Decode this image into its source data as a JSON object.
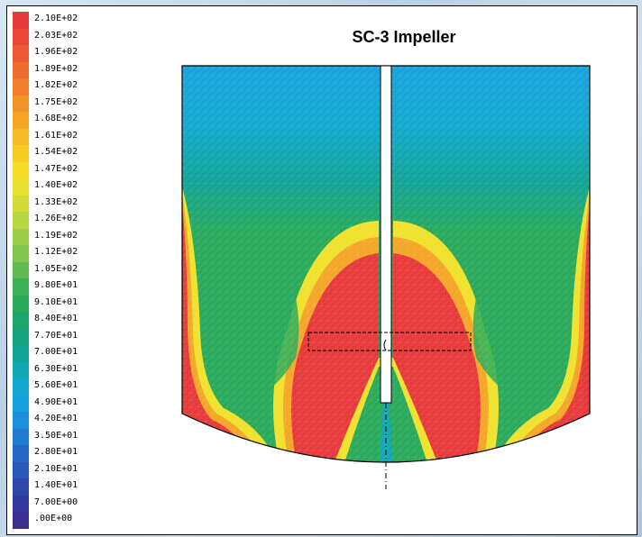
{
  "title": "SC-3 Impeller",
  "legend": {
    "labels": [
      "2.10E+02",
      "2.03E+02",
      "1.96E+02",
      "1.89E+02",
      "1.82E+02",
      "1.75E+02",
      "1.68E+02",
      "1.61E+02",
      "1.54E+02",
      "1.47E+02",
      "1.40E+02",
      "1.33E+02",
      "1.26E+02",
      "1.19E+02",
      "1.12E+02",
      "1.05E+02",
      "9.80E+01",
      "9.10E+01",
      "8.40E+01",
      "7.70E+01",
      "7.00E+01",
      "6.30E+01",
      "5.60E+01",
      "4.90E+01",
      "4.20E+01",
      "3.50E+01",
      "2.80E+01",
      "2.10E+01",
      "1.40E+01",
      "7.00E+00",
      ".00E+00"
    ],
    "colors": [
      "#e8393a",
      "#ea4737",
      "#ec5a33",
      "#ee6d30",
      "#f0802d",
      "#f2932a",
      "#f5a627",
      "#f7b924",
      "#f9cc22",
      "#f7dc26",
      "#e9df2e",
      "#d2dc38",
      "#b8d642",
      "#9dce4a",
      "#7fc54f",
      "#5fbb52",
      "#3db054",
      "#29aa5a",
      "#1ba568",
      "#13a47e",
      "#10a598",
      "#10a8b4",
      "#12a8cf",
      "#16a2e0",
      "#1a8fdc",
      "#1f7bd2",
      "#2467c5",
      "#2957b7",
      "#2e48a8",
      "#33399a",
      "#3a2f8f"
    ]
  },
  "colors": {
    "red": "#e8393a",
    "orange": "#f5a627",
    "yellow": "#f0e22a",
    "green": "#29aa5a",
    "cyan": "#10a8b4",
    "blue": "#16a2e0"
  }
}
